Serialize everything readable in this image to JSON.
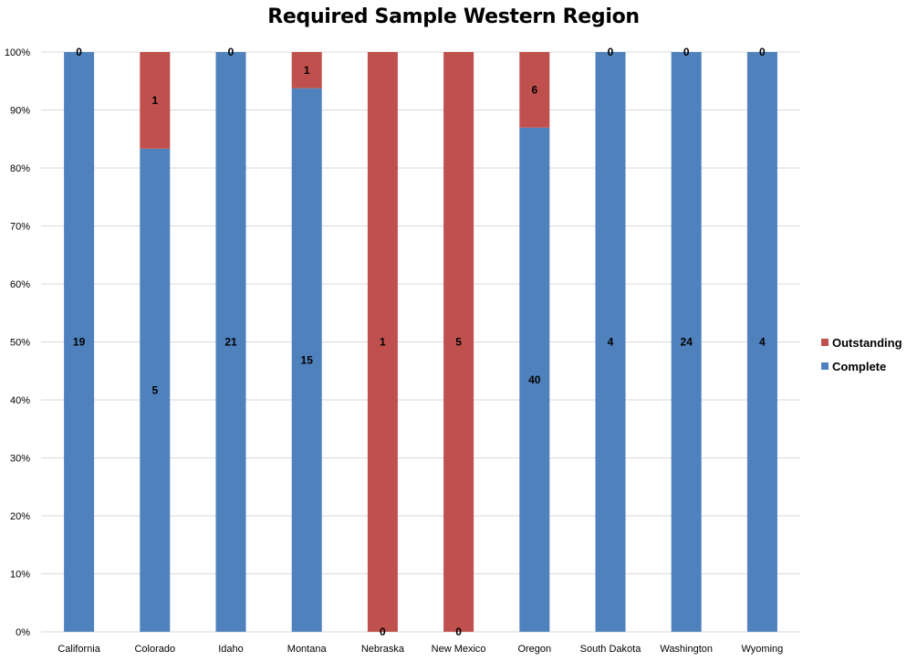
{
  "chart_data": {
    "type": "bar",
    "stacked": "percent",
    "title": "Required Sample Western Region",
    "xlabel": "",
    "ylabel": "",
    "ylim": [
      0,
      100
    ],
    "y_ticks": [
      "0%",
      "10%",
      "20%",
      "30%",
      "40%",
      "50%",
      "60%",
      "70%",
      "80%",
      "90%",
      "100%"
    ],
    "categories": [
      "California",
      "Colorado",
      "Idaho",
      "Montana",
      "Nebraska",
      "New Mexico",
      "Oregon",
      "South Dakota",
      "Washington",
      "Wyoming"
    ],
    "series": [
      {
        "name": "Complete",
        "color": "#4f81bd",
        "values": [
          19,
          5,
          21,
          15,
          0,
          0,
          40,
          4,
          24,
          4
        ]
      },
      {
        "name": "Outstanding",
        "color": "#c0504d",
        "values": [
          0,
          1,
          0,
          1,
          1,
          5,
          6,
          0,
          0,
          0
        ]
      }
    ],
    "legend_position": "right",
    "grid": true
  }
}
